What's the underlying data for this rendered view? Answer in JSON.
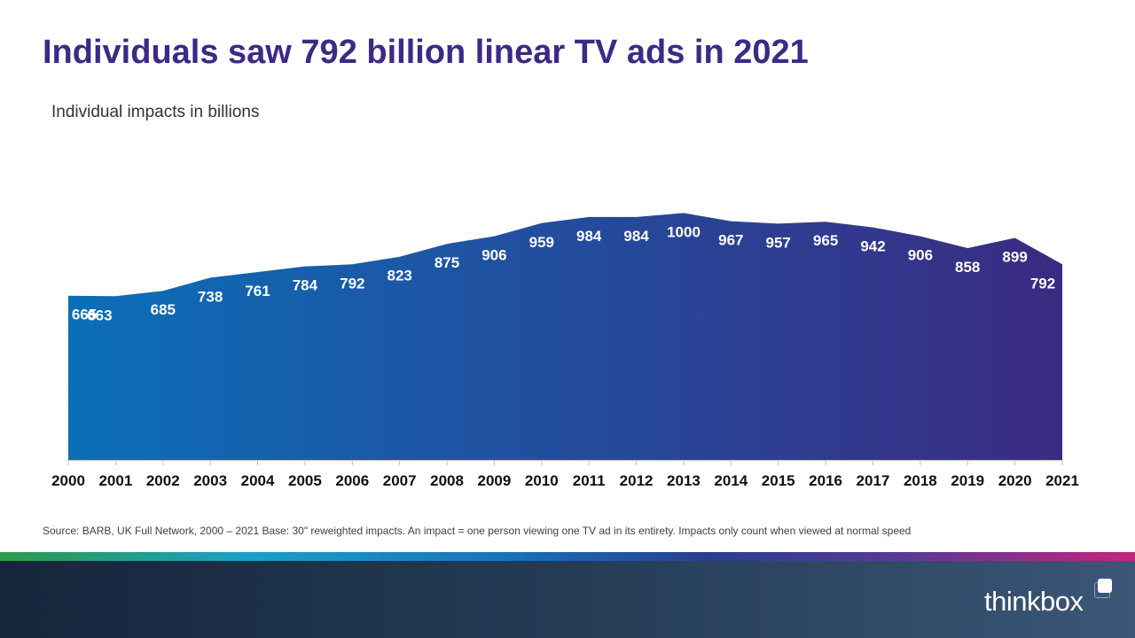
{
  "title": "Individuals saw 792 billion linear TV ads in 2021",
  "subtitle": "Individual impacts in billions",
  "source": "Source: BARB, UK Full Network, 2000 – 2021 Base: 30\" reweighted impacts. An impact = one person viewing  one TV ad in its entirety. Impacts only count when viewed  at normal speed",
  "logo": {
    "text": "thinkbox",
    "icon": "thinkbox-square-icon"
  },
  "colors": {
    "title": "#3b2a86",
    "area_start": "#0b6fb8",
    "area_end": "#3b2a82",
    "stripe_start": "#2e9b4a",
    "stripe_end": "#c4257e",
    "footer": "#1b2d45"
  },
  "chart_data": {
    "type": "area",
    "title": "Individuals saw 792 billion linear TV ads in 2021",
    "subtitle": "Individual impacts in billions",
    "xlabel": "",
    "ylabel": "",
    "grid": false,
    "legend": "none",
    "data_labels": true,
    "x": [
      "2000",
      "2001",
      "2002",
      "2003",
      "2004",
      "2005",
      "2006",
      "2007",
      "2008",
      "2009",
      "2010",
      "2011",
      "2012",
      "2013",
      "2014",
      "2015",
      "2016",
      "2017",
      "2018",
      "2019",
      "2020",
      "2021"
    ],
    "values": [
      665,
      663,
      685,
      738,
      761,
      784,
      792,
      823,
      875,
      906,
      959,
      984,
      984,
      1000,
      967,
      957,
      965,
      942,
      906,
      858,
      899,
      792
    ],
    "ylim": [
      0,
      1000
    ]
  }
}
